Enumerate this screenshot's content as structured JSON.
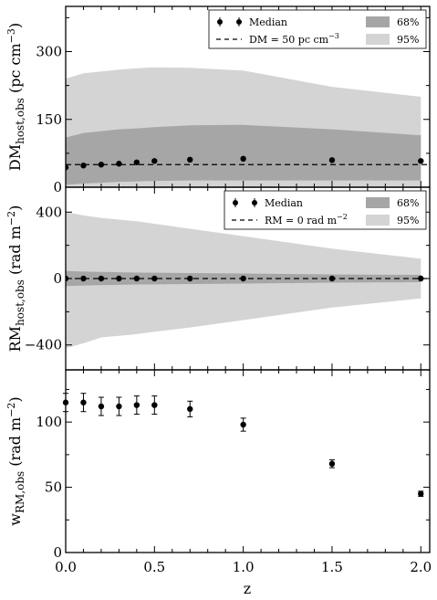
{
  "chart_data": [
    {
      "type": "area",
      "id": "dm",
      "ylabel": "DM",
      "ylabel_sub": "host,obs",
      "ylabel_unit": "(pc cm",
      "ylabel_sup": "−3",
      "ylabel_close": ")",
      "xlim": [
        0,
        2.05
      ],
      "ylim": [
        0,
        400
      ],
      "yticks": [
        0,
        150,
        300
      ],
      "x": [
        0.0,
        0.1,
        0.2,
        0.3,
        0.4,
        0.5,
        0.7,
        1.0,
        1.5,
        2.0
      ],
      "median": [
        44,
        48,
        50,
        52,
        55,
        58,
        61,
        63,
        60,
        58
      ],
      "band68_low": [
        5,
        8,
        10,
        12,
        13,
        14,
        15,
        15,
        15,
        15
      ],
      "band68_high": [
        110,
        120,
        124,
        128,
        130,
        133,
        137,
        138,
        128,
        115
      ],
      "band95_low": [
        0,
        0,
        0,
        0,
        0,
        0,
        0,
        0,
        0,
        0
      ],
      "band95_high": [
        240,
        252,
        256,
        260,
        263,
        265,
        264,
        258,
        222,
        200
      ],
      "reference": 50,
      "legend": {
        "median": "Median",
        "reference": "DM = 50 pc cm",
        "reference_sup": "−3",
        "band68": "68%",
        "band95": "95%"
      }
    },
    {
      "type": "area",
      "id": "rm",
      "ylabel": "RM",
      "ylabel_sub": "host,obs",
      "ylabel_unit": "(rad m",
      "ylabel_sup": "−2",
      "ylabel_close": ")",
      "xlim": [
        0,
        2.05
      ],
      "ylim": [
        -550,
        550
      ],
      "yticks": [
        -400,
        0,
        400
      ],
      "ytick_labels": [
        "−400",
        "0",
        "400"
      ],
      "x": [
        0.0,
        0.1,
        0.2,
        0.3,
        0.4,
        0.5,
        0.7,
        1.0,
        1.5,
        2.0
      ],
      "median": [
        0,
        0,
        0,
        0,
        0,
        0,
        0,
        0,
        0,
        0
      ],
      "band68_low": [
        -45,
        -42,
        -40,
        -38,
        -36,
        -35,
        -33,
        -30,
        -25,
        -22
      ],
      "band68_high": [
        45,
        42,
        40,
        38,
        36,
        35,
        33,
        30,
        25,
        22
      ],
      "band95_low": [
        -420,
        -390,
        -355,
        -345,
        -335,
        -320,
        -295,
        -250,
        -175,
        -120
      ],
      "band95_high": [
        400,
        380,
        365,
        355,
        345,
        330,
        300,
        255,
        180,
        120
      ],
      "reference": 0,
      "legend": {
        "median": "Median",
        "reference": "RM = 0 rad m",
        "reference_sup": "−2",
        "band68": "68%",
        "band95": "95%"
      }
    },
    {
      "type": "scatter",
      "id": "wrm",
      "ylabel": "w",
      "ylabel_sub": "RM,obs",
      "ylabel_unit": "(rad m",
      "ylabel_sup": "−2",
      "ylabel_close": ")",
      "xlabel": "z",
      "xlim": [
        0,
        2.05
      ],
      "ylim": [
        0,
        140
      ],
      "yticks": [
        0,
        50,
        100
      ],
      "xticks": [
        0,
        0.5,
        1.0,
        1.5,
        2.0
      ],
      "xtick_labels": [
        "0.0",
        "0.5",
        "1.0",
        "1.5",
        "2.0"
      ],
      "x": [
        0.0,
        0.1,
        0.2,
        0.3,
        0.4,
        0.5,
        0.7,
        1.0,
        1.5,
        2.0
      ],
      "y": [
        115,
        115,
        112,
        112,
        113,
        113,
        110,
        98,
        68,
        45
      ],
      "yerr": [
        7,
        7,
        7,
        7,
        7,
        7,
        6,
        5,
        3,
        2
      ]
    }
  ],
  "colors": {
    "band68": "#a6a6a6",
    "band95": "#d4d4d4",
    "median": "#000000",
    "reference": "#000000",
    "frame": "#000000"
  }
}
